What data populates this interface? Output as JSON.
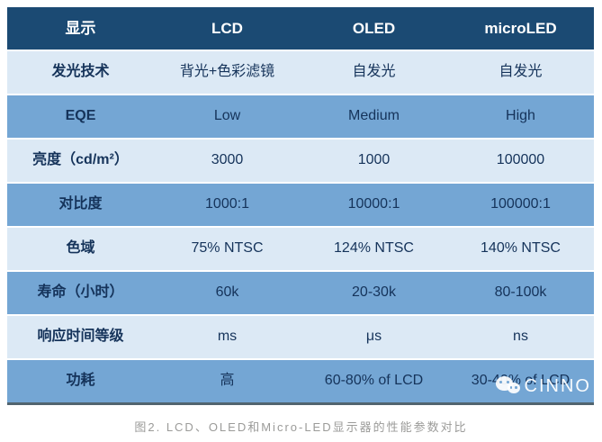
{
  "table": {
    "header": {
      "c0": "显示",
      "c1": "LCD",
      "c2": "OLED",
      "c3": "microLED"
    },
    "rows": [
      {
        "label": "发光技术",
        "values": [
          "背光+色彩滤镜",
          "自发光",
          "自发光"
        ],
        "tone": "light"
      },
      {
        "label": "EQE",
        "values": [
          "Low",
          "Medium",
          "High"
        ],
        "tone": "medium"
      },
      {
        "label": "亮度（cd/m²）",
        "values": [
          "3000",
          "1000",
          "100000"
        ],
        "tone": "light"
      },
      {
        "label": "对比度",
        "values": [
          "1000:1",
          "10000:1",
          "100000:1"
        ],
        "tone": "medium"
      },
      {
        "label": "色域",
        "values": [
          "75% NTSC",
          "124% NTSC",
          "140% NTSC"
        ],
        "tone": "light"
      },
      {
        "label": "寿命（小时）",
        "values": [
          "60k",
          "20-30k",
          "80-100k"
        ],
        "tone": "medium"
      },
      {
        "label": "响应时间等级",
        "values": [
          "ms",
          "μs",
          "ns"
        ],
        "tone": "light"
      },
      {
        "label": "功耗",
        "values": [
          "高",
          "60-80% of LCD",
          "30-40% of LCD"
        ],
        "tone": "medium"
      }
    ]
  },
  "caption": "图2. LCD、OLED和Micro-LED显示器的性能参数对比",
  "watermark": {
    "brand": "CINNO",
    "icon": "wechat-bubbles-icon"
  },
  "colors": {
    "header_bg": "#1b4a73",
    "row_light_bg": "#dce9f5",
    "row_medium_bg": "#74a6d4",
    "header_text": "#ffffff",
    "body_text": "#15335a",
    "bottom_border": "#51646f",
    "caption_text": "#9b9b99"
  }
}
